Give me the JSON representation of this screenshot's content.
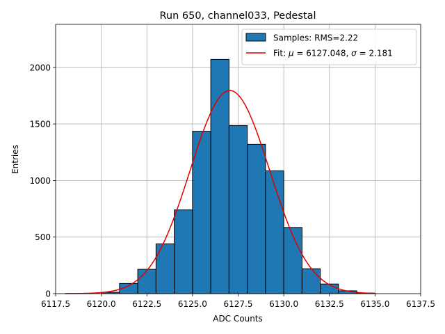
{
  "chart_data": {
    "type": "bar",
    "title": "Run 650, channel033, Pedestal",
    "xlabel": "ADC Counts",
    "ylabel": "Entries",
    "xlim": [
      6117.5,
      6137.5
    ],
    "ylim": [
      0,
      2380
    ],
    "grid": true,
    "legend_position": "top-right",
    "bin_width": 1,
    "bins": [
      {
        "left": 6120,
        "count": 12
      },
      {
        "left": 6121,
        "count": 90
      },
      {
        "left": 6122,
        "count": 215
      },
      {
        "left": 6123,
        "count": 440
      },
      {
        "left": 6124,
        "count": 740
      },
      {
        "left": 6125,
        "count": 1435
      },
      {
        "left": 6126,
        "count": 2070
      },
      {
        "left": 6127,
        "count": 1485
      },
      {
        "left": 6128,
        "count": 1320
      },
      {
        "left": 6129,
        "count": 1085
      },
      {
        "left": 6130,
        "count": 585
      },
      {
        "left": 6131,
        "count": 220
      },
      {
        "left": 6132,
        "count": 85
      },
      {
        "left": 6133,
        "count": 25
      },
      {
        "left": 6134,
        "count": 5
      }
    ],
    "fit": {
      "mu": 6127.048,
      "sigma": 2.181,
      "amplitude": 1795,
      "x_range": [
        6118,
        6135
      ]
    },
    "series": [
      {
        "name": "Samples: RMS=2.22",
        "color": "#1f77b4",
        "kind": "histogram"
      },
      {
        "name_prefix": "Fit: ",
        "mu_symbol": "μ",
        "mu_text": " = 6127.048, ",
        "sigma_symbol": "σ",
        "sigma_text": " = 2.181",
        "color": "#e00000",
        "kind": "line"
      }
    ],
    "x_ticks": [
      {
        "value": 6117.5,
        "label": "6117.5"
      },
      {
        "value": 6120.0,
        "label": "6120.0"
      },
      {
        "value": 6122.5,
        "label": "6122.5"
      },
      {
        "value": 6125.0,
        "label": "6125.0"
      },
      {
        "value": 6127.5,
        "label": "6127.5"
      },
      {
        "value": 6130.0,
        "label": "6130.0"
      },
      {
        "value": 6132.5,
        "label": "6132.5"
      },
      {
        "value": 6135.0,
        "label": "6135.0"
      },
      {
        "value": 6137.5,
        "label": "6137.5"
      }
    ],
    "y_ticks": [
      {
        "value": 0,
        "label": "0"
      },
      {
        "value": 500,
        "label": "500"
      },
      {
        "value": 1000,
        "label": "1000"
      },
      {
        "value": 1500,
        "label": "1500"
      },
      {
        "value": 2000,
        "label": "2000"
      }
    ]
  }
}
